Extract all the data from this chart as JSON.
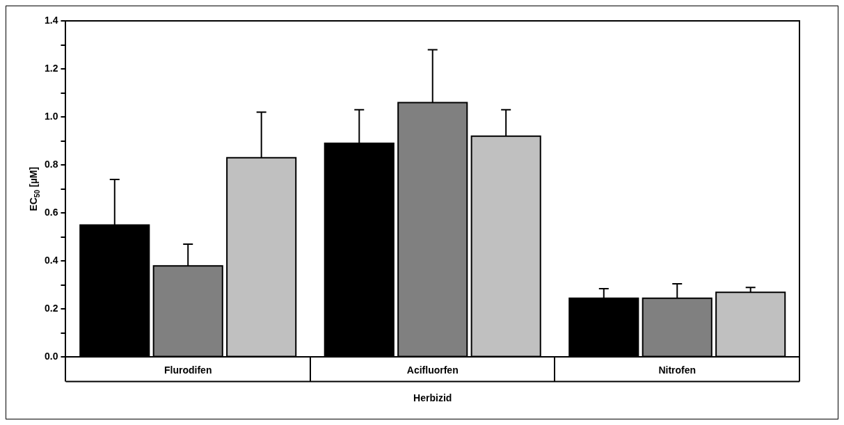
{
  "chart_data": {
    "type": "bar",
    "xlabel": "Herbizid",
    "ylabel": "EC$_{50}$ [µM]",
    "categories": [
      "Flurodifen",
      "Acifluorfen",
      "Nitrofen"
    ],
    "series": [
      {
        "color": "#000000",
        "values": [
          0.55,
          0.89,
          0.245
        ],
        "errors": [
          [
            0.55,
            0.74
          ],
          [
            0.89,
            1.03
          ],
          [
            0.245,
            0.285
          ]
        ]
      },
      {
        "color": "#808080",
        "values": [
          0.38,
          1.06,
          0.245
        ],
        "errors": [
          [
            0.38,
            0.47
          ],
          [
            1.06,
            1.28
          ],
          [
            0.245,
            0.305
          ]
        ]
      },
      {
        "color": "#c0c0c0",
        "values": [
          0.83,
          0.92,
          0.27
        ],
        "errors": [
          [
            0.83,
            1.02
          ],
          [
            0.92,
            1.03
          ],
          [
            0.27,
            0.29
          ]
        ]
      }
    ],
    "ylim": [
      0,
      1.4
    ],
    "yticks": [
      {
        "value": 0,
        "label": "0.0"
      },
      {
        "value": 0.1,
        "label": null
      },
      0.2,
      {
        "value": 0.3,
        "label": null
      },
      0.4,
      {
        "value": 0.5,
        "label": null
      },
      0.6,
      {
        "value": 0.7,
        "label": null
      },
      0.8,
      {
        "value": 0.9,
        "label": null
      },
      {
        "value": 1.0,
        "label": "1.0"
      },
      {
        "value": 1.1,
        "label": null
      },
      1.2,
      {
        "value": 1.3,
        "label": null
      },
      1.4
    ],
    "legend": false,
    "grid": false
  }
}
